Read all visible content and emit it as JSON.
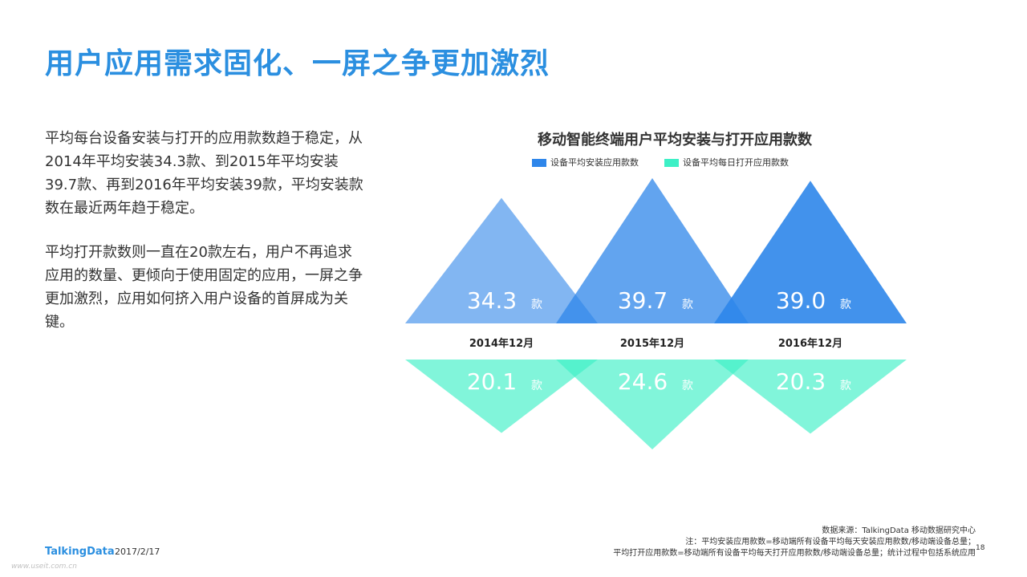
{
  "slide": {
    "title": "用户应用需求固化、一屏之争更加激烈",
    "paragraphs": [
      "平均每台设备安装与打开的应用款数趋于稳定，从2014年平均安装34.3款、到2015年平均安装39.7款、再到2016年平均安装39款，平均安装款数在最近两年趋于稳定。",
      "平均打开款数则一直在20款左右，用户不再追求应用的数量、更倾向于使用固定的应用，一屏之争更加激烈，应用如何挤入用户设备的首屏成为关键。"
    ]
  },
  "chart_data": {
    "type": "bar",
    "title": "移动智能终端用户平均安装与打开应用款数",
    "categories": [
      "2014年12月",
      "2015年12月",
      "2016年12月"
    ],
    "unit": "款",
    "series": [
      {
        "name": "设备平均安装应用款数",
        "values": [
          34.3,
          39.7,
          39.0
        ],
        "value_labels": [
          "34.3",
          "39.7",
          "39.0"
        ],
        "color": "#2e86ea"
      },
      {
        "name": "设备平均每日打开应用款数",
        "values": [
          20.1,
          24.6,
          20.3
        ],
        "value_labels": [
          "20.1",
          "24.6",
          "20.3"
        ],
        "color": "#3df0c6"
      }
    ],
    "legend_position": "top",
    "grid": false
  },
  "footer": {
    "logo": "TalkingData",
    "date": "2017/2/17",
    "source_lines": [
      "数据来源：TalkingData 移动数据研究中心",
      "注：平均安装应用款数=移动端所有设备平均每天安装应用款数/移动端设备总量；",
      "平均打开应用款数=移动端所有设备平均每天打开应用款数/移动端设备总量；统计过程中包括系统应用"
    ],
    "page_number": "18",
    "watermark": "www.useit.com.cn"
  }
}
